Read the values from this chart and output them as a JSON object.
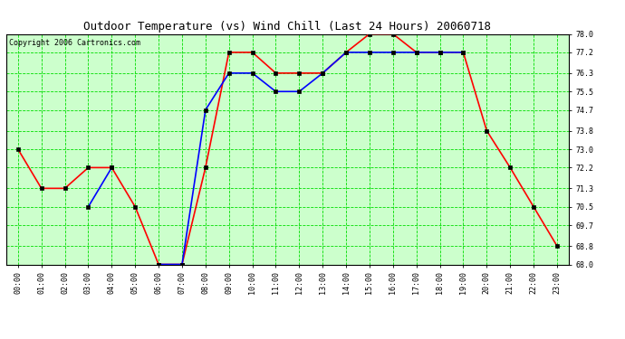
{
  "title": "Outdoor Temperature (vs) Wind Chill (Last 24 Hours) 20060718",
  "copyright": "Copyright 2006 Cartronics.com",
  "hours": [
    "00:00",
    "01:00",
    "02:00",
    "03:00",
    "04:00",
    "05:00",
    "06:00",
    "07:00",
    "08:00",
    "09:00",
    "10:00",
    "11:00",
    "12:00",
    "13:00",
    "14:00",
    "15:00",
    "16:00",
    "17:00",
    "18:00",
    "19:00",
    "20:00",
    "21:00",
    "22:00",
    "23:00"
  ],
  "temp": [
    73.0,
    71.3,
    71.3,
    72.2,
    72.2,
    70.5,
    68.0,
    68.0,
    72.2,
    77.2,
    77.2,
    76.3,
    76.3,
    76.3,
    77.2,
    78.0,
    78.0,
    77.2,
    77.2,
    77.2,
    73.8,
    72.2,
    70.5,
    68.8
  ],
  "windchill": [
    null,
    null,
    null,
    70.5,
    72.2,
    null,
    68.0,
    68.0,
    74.7,
    76.3,
    76.3,
    75.5,
    75.5,
    76.3,
    77.2,
    77.2,
    77.2,
    77.2,
    77.2,
    77.2,
    null,
    null,
    null,
    null
  ],
  "ylim_min": 68.0,
  "ylim_max": 78.0,
  "yticks": [
    68.0,
    68.8,
    69.7,
    70.5,
    71.3,
    72.2,
    73.0,
    73.8,
    74.7,
    75.5,
    76.3,
    77.2,
    78.0
  ],
  "temp_color": "#ff0000",
  "windchill_color": "#0000ff",
  "grid_color": "#00dd00",
  "bg_color": "#ccffcc",
  "marker_color": "#000000",
  "marker_size": 2.5,
  "line_width": 1.2,
  "title_fontsize": 9,
  "tick_fontsize": 6,
  "copyright_fontsize": 6
}
